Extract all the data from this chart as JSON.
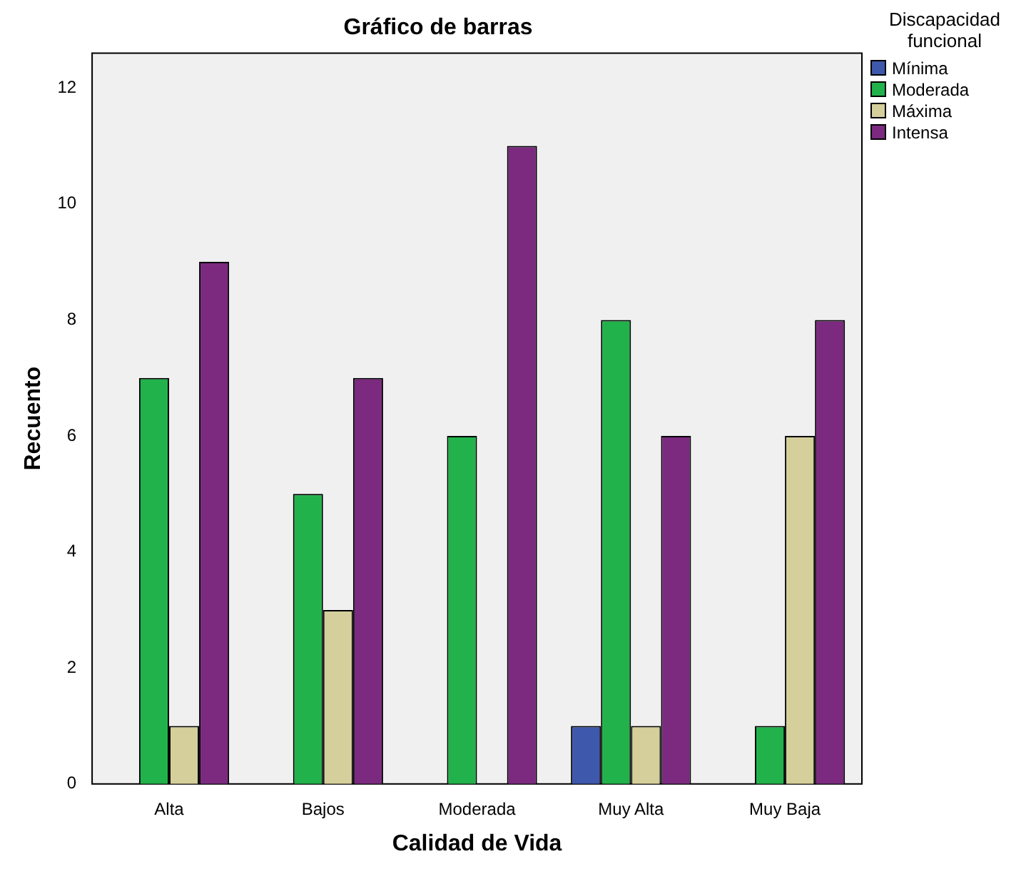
{
  "chart_data": {
    "type": "bar",
    "title": "Gráfico de barras",
    "xlabel": "Calidad de Vida",
    "ylabel": "Recuento",
    "legend_title": "Discapacidad funcional",
    "categories": [
      "Alta",
      "Bajos",
      "Moderada",
      "Muy Alta",
      "Muy Baja"
    ],
    "series": [
      {
        "name": "Mínima",
        "color": "#3e58ac",
        "values": [
          null,
          null,
          null,
          1,
          null
        ]
      },
      {
        "name": "Moderada",
        "color": "#21b24b",
        "values": [
          7,
          5,
          6,
          8,
          1
        ]
      },
      {
        "name": "Máxima",
        "color": "#d4cf9b",
        "values": [
          1,
          3,
          null,
          1,
          6
        ]
      },
      {
        "name": "Intensa",
        "color": "#7b2a7f",
        "values": [
          9,
          7,
          11,
          6,
          8
        ]
      }
    ],
    "ylim": [
      0,
      12.6
    ],
    "yticks": [
      0,
      2,
      4,
      6,
      8,
      10,
      12
    ],
    "grid": false,
    "legend": "top right"
  }
}
